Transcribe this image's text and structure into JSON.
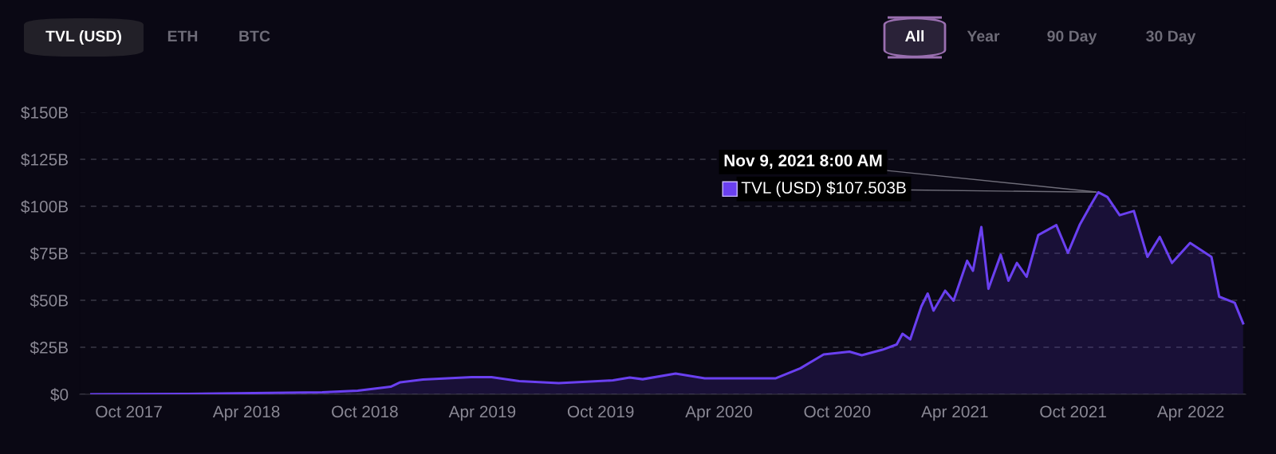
{
  "chart_data": {
    "type": "area",
    "x": [
      "2017-08-04",
      "2017-12-30",
      "2018-07-27",
      "2018-09-20",
      "2018-11-10",
      "2018-11-25",
      "2018-12-30",
      "2019-03-15",
      "2019-04-15",
      "2019-05-28",
      "2019-07-28",
      "2019-09-15",
      "2019-10-20",
      "2019-11-15",
      "2019-12-05",
      "2020-01-25",
      "2020-03-10",
      "2020-05-15",
      "2020-06-28",
      "2020-08-05",
      "2020-09-10",
      "2020-10-20",
      "2020-11-08",
      "2020-12-10",
      "2021-01-01",
      "2021-01-10",
      "2021-01-22",
      "2021-02-08",
      "2021-02-18",
      "2021-02-27",
      "2021-03-17",
      "2021-03-30",
      "2021-04-20",
      "2021-04-29",
      "2021-05-12",
      "2021-05-23",
      "2021-06-11",
      "2021-06-23",
      "2021-07-06",
      "2021-07-21",
      "2021-08-08",
      "2021-09-05",
      "2021-09-23",
      "2021-10-11",
      "2021-10-30",
      "2021-11-09",
      "2021-11-23",
      "2021-12-12",
      "2022-01-03",
      "2022-01-24",
      "2022-02-12",
      "2022-03-03",
      "2022-03-31",
      "2022-05-03",
      "2022-05-15",
      "2022-06-08",
      "2022-06-21"
    ],
    "series": [
      {
        "color": "#6a40f0",
        "values": [
          0,
          0.2,
          1.1,
          1.9,
          4.0,
          6.4,
          7.8,
          9.1,
          9.1,
          7.0,
          5.9,
          6.8,
          7.4,
          8.9,
          8.0,
          11.0,
          8.5,
          8.5,
          8.5,
          13.8,
          21.2,
          22.7,
          20.8,
          23.7,
          26.5,
          32.2,
          29.2,
          46.6,
          53.6,
          44.5,
          55.1,
          49.8,
          71.0,
          65.7,
          89.0,
          56.1,
          74.2,
          60.4,
          69.9,
          62.5,
          84.7,
          90.0,
          75.2,
          90.0,
          101.7,
          107.503,
          104.9,
          95.3,
          97.5,
          73.1,
          83.7,
          69.9,
          80.5,
          73.1,
          51.9,
          48.7,
          37.7
        ]
      }
    ],
    "xlim": [
      "2017-07-17",
      "2022-06-25"
    ],
    "xticks": [
      {
        "value": "2017-10-01",
        "label": "Oct 2017"
      },
      {
        "value": "2018-04-01",
        "label": "Apr 2018"
      },
      {
        "value": "2018-10-01",
        "label": "Oct 2018"
      },
      {
        "value": "2019-04-01",
        "label": "Apr 2019"
      },
      {
        "value": "2019-10-01",
        "label": "Oct 2019"
      },
      {
        "value": "2020-04-01",
        "label": "Apr 2020"
      },
      {
        "value": "2020-10-01",
        "label": "Oct 2020"
      },
      {
        "value": "2021-04-01",
        "label": "Apr 2021"
      },
      {
        "value": "2021-10-01",
        "label": "Oct 2021"
      },
      {
        "value": "2022-04-01",
        "label": "Apr 2022"
      }
    ],
    "ylim": [
      0,
      150
    ],
    "yticks": [
      {
        "value": 0,
        "label": "$0"
      },
      {
        "value": 25,
        "label": "$25B"
      },
      {
        "value": 50,
        "label": "$50B"
      },
      {
        "value": 75,
        "label": "$75B"
      },
      {
        "value": 100,
        "label": "$100B"
      },
      {
        "value": 125,
        "label": "$125B"
      },
      {
        "value": 150,
        "label": "$150B"
      }
    ],
    "grid": "y",
    "annotations": [
      "TVL (USD)",
      "ETH",
      "BTC",
      "All",
      "Year",
      "90 Day",
      "30 Day",
      {
        "text": "Nov 9, 2021 8:00 AM",
        "x": "2021-11-09",
        "y": 107.503
      },
      {
        "text": "TVL (USD) $107.503B",
        "x": "2021-11-09",
        "y": 107.503
      }
    ]
  }
}
